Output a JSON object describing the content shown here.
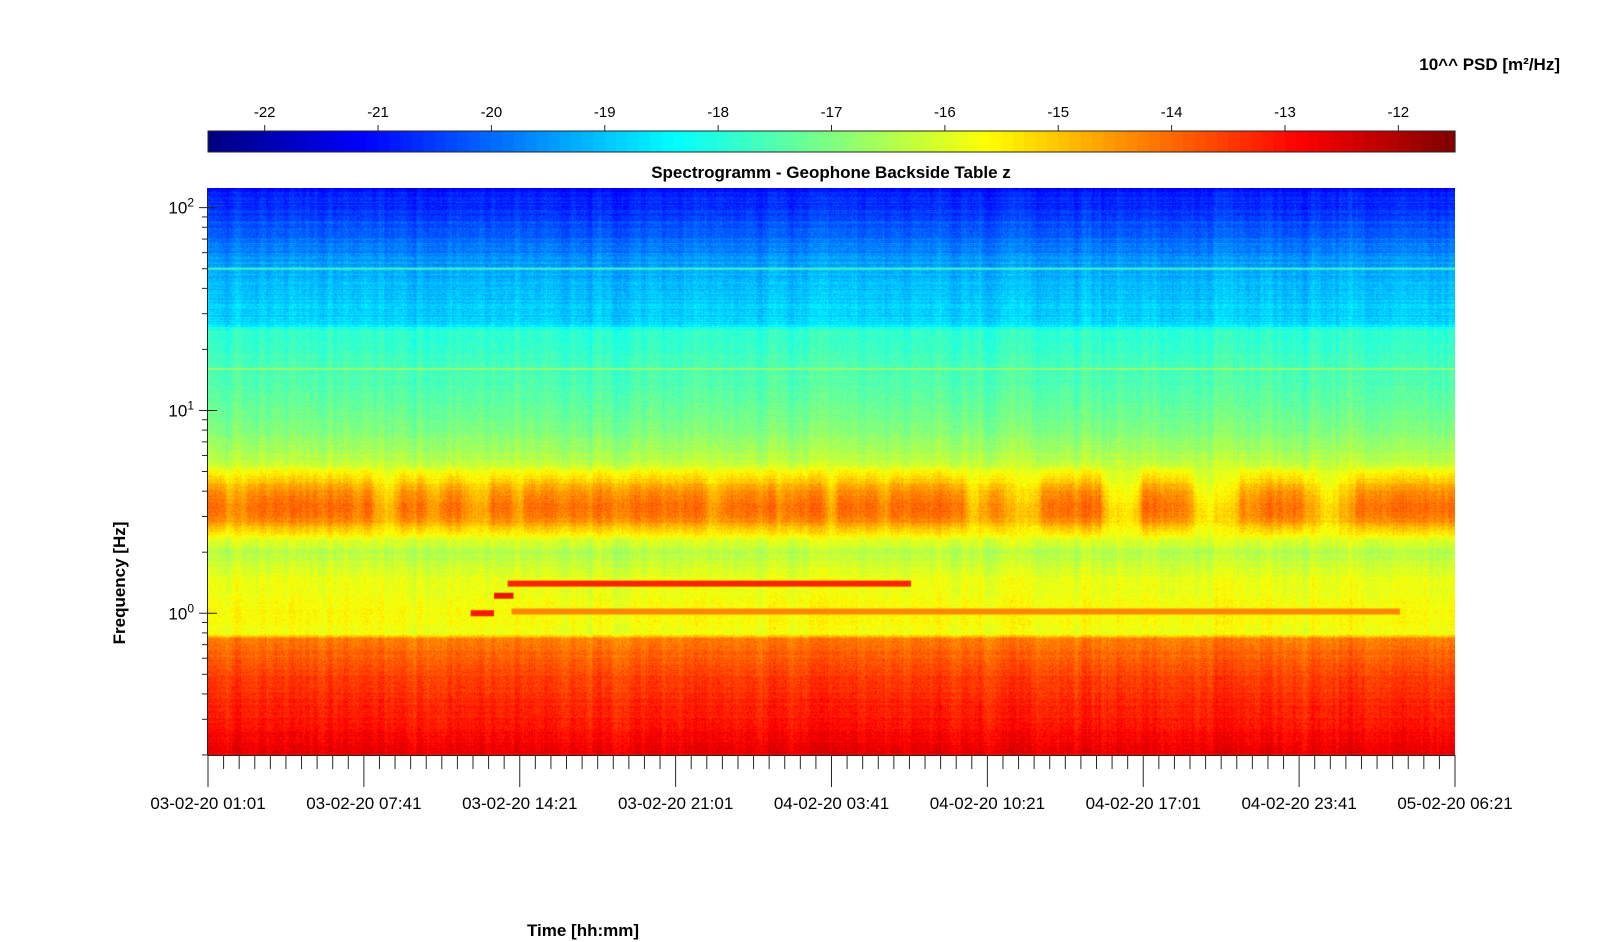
{
  "chart_data": {
    "type": "heatmap",
    "title": "Spectrogramm - Geophone Backside Table z",
    "xlabel": "Time [hh:mm]",
    "ylabel": "Frequency [Hz]",
    "colorbar": {
      "label": "10^^ PSD [m²/Hz]",
      "range": [
        -22.5,
        -11.5
      ],
      "ticks": [
        -22,
        -21,
        -20,
        -19,
        -18,
        -17,
        -16,
        -15,
        -14,
        -13,
        -12
      ],
      "tick_labels": [
        "-22",
        "-21",
        "-20",
        "-19",
        "-18",
        "-17",
        "-16",
        "-15",
        "-14",
        "-13",
        "-12"
      ],
      "colormap": "jet",
      "placement": "top"
    },
    "x_ticks": [
      "03-02-20 01:01",
      "03-02-20 07:41",
      "03-02-20 14:21",
      "03-02-20 21:01",
      "04-02-20 03:41",
      "04-02-20 10:21",
      "04-02-20 17:01",
      "04-02-20 23:41",
      "05-02-20 06:21"
    ],
    "xlim": [
      "03-02-20 01:01",
      "05-02-20 06:21"
    ],
    "y_scale": "log",
    "ylim": [
      0.2,
      125
    ],
    "y_ticks": [
      1,
      10,
      100
    ],
    "y_tick_labels": [
      {
        "base": "10",
        "exp": "0"
      },
      {
        "base": "10",
        "exp": "1"
      },
      {
        "base": "10",
        "exp": "2"
      }
    ],
    "psd_profile": [
      {
        "freq_hz": 0.2,
        "log10_psd": -12.6
      },
      {
        "freq_hz": 0.3,
        "log10_psd": -13.1
      },
      {
        "freq_hz": 0.5,
        "log10_psd": -13.6
      },
      {
        "freq_hz": 0.75,
        "log10_psd": -14.2
      },
      {
        "freq_hz": 0.8,
        "log10_psd": -15.8
      },
      {
        "freq_hz": 1.0,
        "log10_psd": -15.6
      },
      {
        "freq_hz": 1.5,
        "log10_psd": -15.9
      },
      {
        "freq_hz": 2.0,
        "log10_psd": -16.4
      },
      {
        "freq_hz": 3.0,
        "log10_psd": -15.3
      },
      {
        "freq_hz": 5.0,
        "log10_psd": -16.1
      },
      {
        "freq_hz": 8.0,
        "log10_psd": -17.0
      },
      {
        "freq_hz": 12.0,
        "log10_psd": -17.4
      },
      {
        "freq_hz": 25.0,
        "log10_psd": -17.9
      },
      {
        "freq_hz": 27.0,
        "log10_psd": -18.8
      },
      {
        "freq_hz": 50.0,
        "log10_psd": -19.3
      },
      {
        "freq_hz": 80.0,
        "log10_psd": -20.2
      },
      {
        "freq_hz": 125.0,
        "log10_psd": -21.0
      }
    ],
    "features": [
      {
        "name": "line",
        "freq_hz": 1.0,
        "t_start": "03-02-20 12:15",
        "t_end": "03-02-20 13:15",
        "log10_psd": -12.8
      },
      {
        "name": "line",
        "freq_hz": 1.22,
        "t_start": "03-02-20 13:15",
        "t_end": "03-02-20 14:05",
        "log10_psd": -12.6
      },
      {
        "name": "line",
        "freq_hz": 1.4,
        "t_start": "03-02-20 13:50",
        "t_end": "04-02-20 07:05",
        "log10_psd": -13.0
      },
      {
        "name": "line",
        "freq_hz": 1.02,
        "t_start": "03-02-20 14:00",
        "t_end": "05-02-20 04:00",
        "log10_psd": -14.2
      },
      {
        "name": "line",
        "freq_hz": 16.0,
        "t_start": "03-02-20 01:01",
        "t_end": "05-02-20 06:21",
        "log10_psd": -16.6
      },
      {
        "name": "line",
        "freq_hz": 50.0,
        "t_start": "03-02-20 01:01",
        "t_end": "05-02-20 06:21",
        "log10_psd": -17.6
      }
    ],
    "grid": false
  }
}
